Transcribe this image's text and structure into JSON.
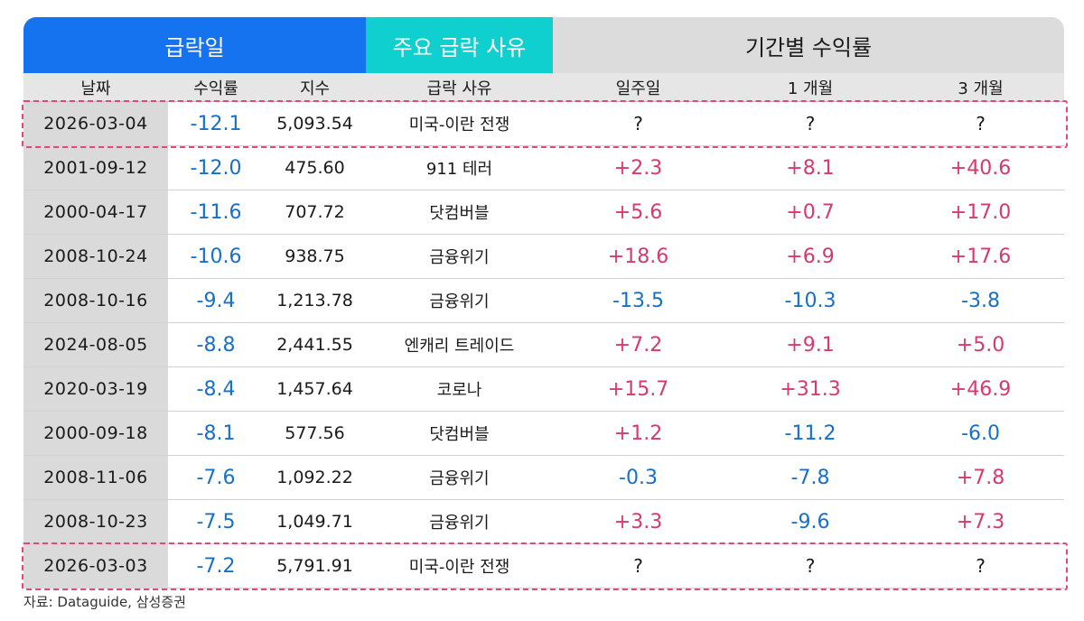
{
  "groups": {
    "crash_day": "급락일",
    "main_reason": "주요 급락 사유",
    "period_returns": "기간별 수익률"
  },
  "columns": [
    "날짜",
    "수익률",
    "지수",
    "급락 사유",
    "일주일",
    "1 개월",
    "3 개월"
  ],
  "rows": [
    {
      "date": "2026-03-04",
      "ret": "-12.1",
      "index": "5,093.54",
      "reason": "미국-이란 전쟁",
      "w1": "?",
      "m1": "?",
      "m3": "?"
    },
    {
      "date": "2001-09-12",
      "ret": "-12.0",
      "index": "475.60",
      "reason": "911 테러",
      "w1": "+2.3",
      "m1": "+8.1",
      "m3": "+40.6"
    },
    {
      "date": "2000-04-17",
      "ret": "-11.6",
      "index": "707.72",
      "reason": "닷컴버블",
      "w1": "+5.6",
      "m1": "+0.7",
      "m3": "+17.0"
    },
    {
      "date": "2008-10-24",
      "ret": "-10.6",
      "index": "938.75",
      "reason": "금융위기",
      "w1": "+18.6",
      "m1": "+6.9",
      "m3": "+17.6"
    },
    {
      "date": "2008-10-16",
      "ret": "-9.4",
      "index": "1,213.78",
      "reason": "금융위기",
      "w1": "-13.5",
      "m1": "-10.3",
      "m3": "-3.8"
    },
    {
      "date": "2024-08-05",
      "ret": "-8.8",
      "index": "2,441.55",
      "reason": "엔캐리 트레이드",
      "w1": "+7.2",
      "m1": "+9.1",
      "m3": "+5.0"
    },
    {
      "date": "2020-03-19",
      "ret": "-8.4",
      "index": "1,457.64",
      "reason": "코로나",
      "w1": "+15.7",
      "m1": "+31.3",
      "m3": "+46.9"
    },
    {
      "date": "2000-09-18",
      "ret": "-8.1",
      "index": "577.56",
      "reason": "닷컴버블",
      "w1": "+1.2",
      "m1": "-11.2",
      "m3": "-6.0"
    },
    {
      "date": "2008-11-06",
      "ret": "-7.6",
      "index": "1,092.22",
      "reason": "금융위기",
      "w1": "-0.3",
      "m1": "-7.8",
      "m3": "+7.8"
    },
    {
      "date": "2008-10-23",
      "ret": "-7.5",
      "index": "1,049.71",
      "reason": "금융위기",
      "w1": "+3.3",
      "m1": "-9.6",
      "m3": "+7.3"
    },
    {
      "date": "2026-03-03",
      "ret": "-7.2",
      "index": "5,791.91",
      "reason": "미국-이란 전쟁",
      "w1": "?",
      "m1": "?",
      "m3": "?"
    }
  ],
  "highlighted_rows": [
    0,
    10
  ],
  "colors": {
    "negative": "#1670c8",
    "positive": "#d63a6a",
    "highlight": "#e0487a",
    "header_blue": "#1673f0",
    "header_cyan": "#0fcfcf"
  },
  "source": "자료: Dataguide, 삼성증권"
}
